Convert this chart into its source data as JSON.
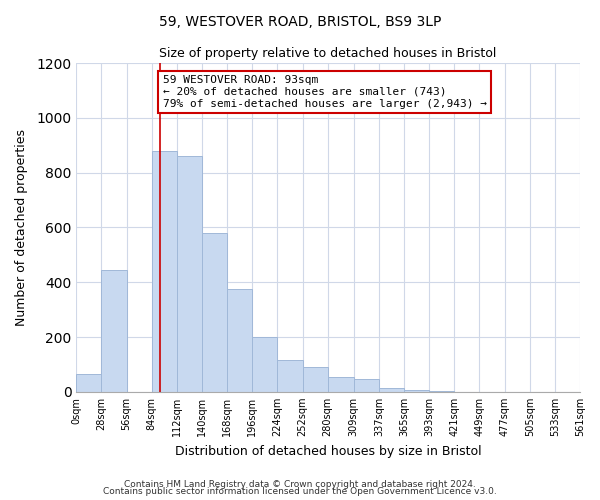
{
  "title": "59, WESTOVER ROAD, BRISTOL, BS9 3LP",
  "subtitle": "Size of property relative to detached houses in Bristol",
  "xlabel": "Distribution of detached houses by size in Bristol",
  "ylabel": "Number of detached properties",
  "bar_color": "#c8d9f0",
  "bar_edge_color": "#a0b8d8",
  "bin_edges": [
    0,
    28,
    56,
    84,
    112,
    140,
    168,
    196,
    224,
    252,
    280,
    309,
    337,
    365,
    393,
    421,
    449,
    477,
    505,
    533,
    561
  ],
  "bar_heights": [
    65,
    445,
    0,
    880,
    860,
    580,
    375,
    200,
    115,
    90,
    55,
    45,
    15,
    5,
    2,
    1,
    1,
    0,
    0,
    0
  ],
  "tick_labels": [
    "0sqm",
    "28sqm",
    "56sqm",
    "84sqm",
    "112sqm",
    "140sqm",
    "168sqm",
    "196sqm",
    "224sqm",
    "252sqm",
    "280sqm",
    "309sqm",
    "337sqm",
    "365sqm",
    "393sqm",
    "421sqm",
    "449sqm",
    "477sqm",
    "505sqm",
    "533sqm",
    "561sqm"
  ],
  "property_line_x": 93,
  "property_line_color": "#cc0000",
  "ylim": [
    0,
    1200
  ],
  "yticks": [
    0,
    200,
    400,
    600,
    800,
    1000,
    1200
  ],
  "annotation_box_text": "59 WESTOVER ROAD: 93sqm\n← 20% of detached houses are smaller (743)\n79% of semi-detached houses are larger (2,943) →",
  "footer_line1": "Contains HM Land Registry data © Crown copyright and database right 2024.",
  "footer_line2": "Contains public sector information licensed under the Open Government Licence v3.0.",
  "background_color": "#ffffff",
  "grid_color": "#d0d8e8"
}
